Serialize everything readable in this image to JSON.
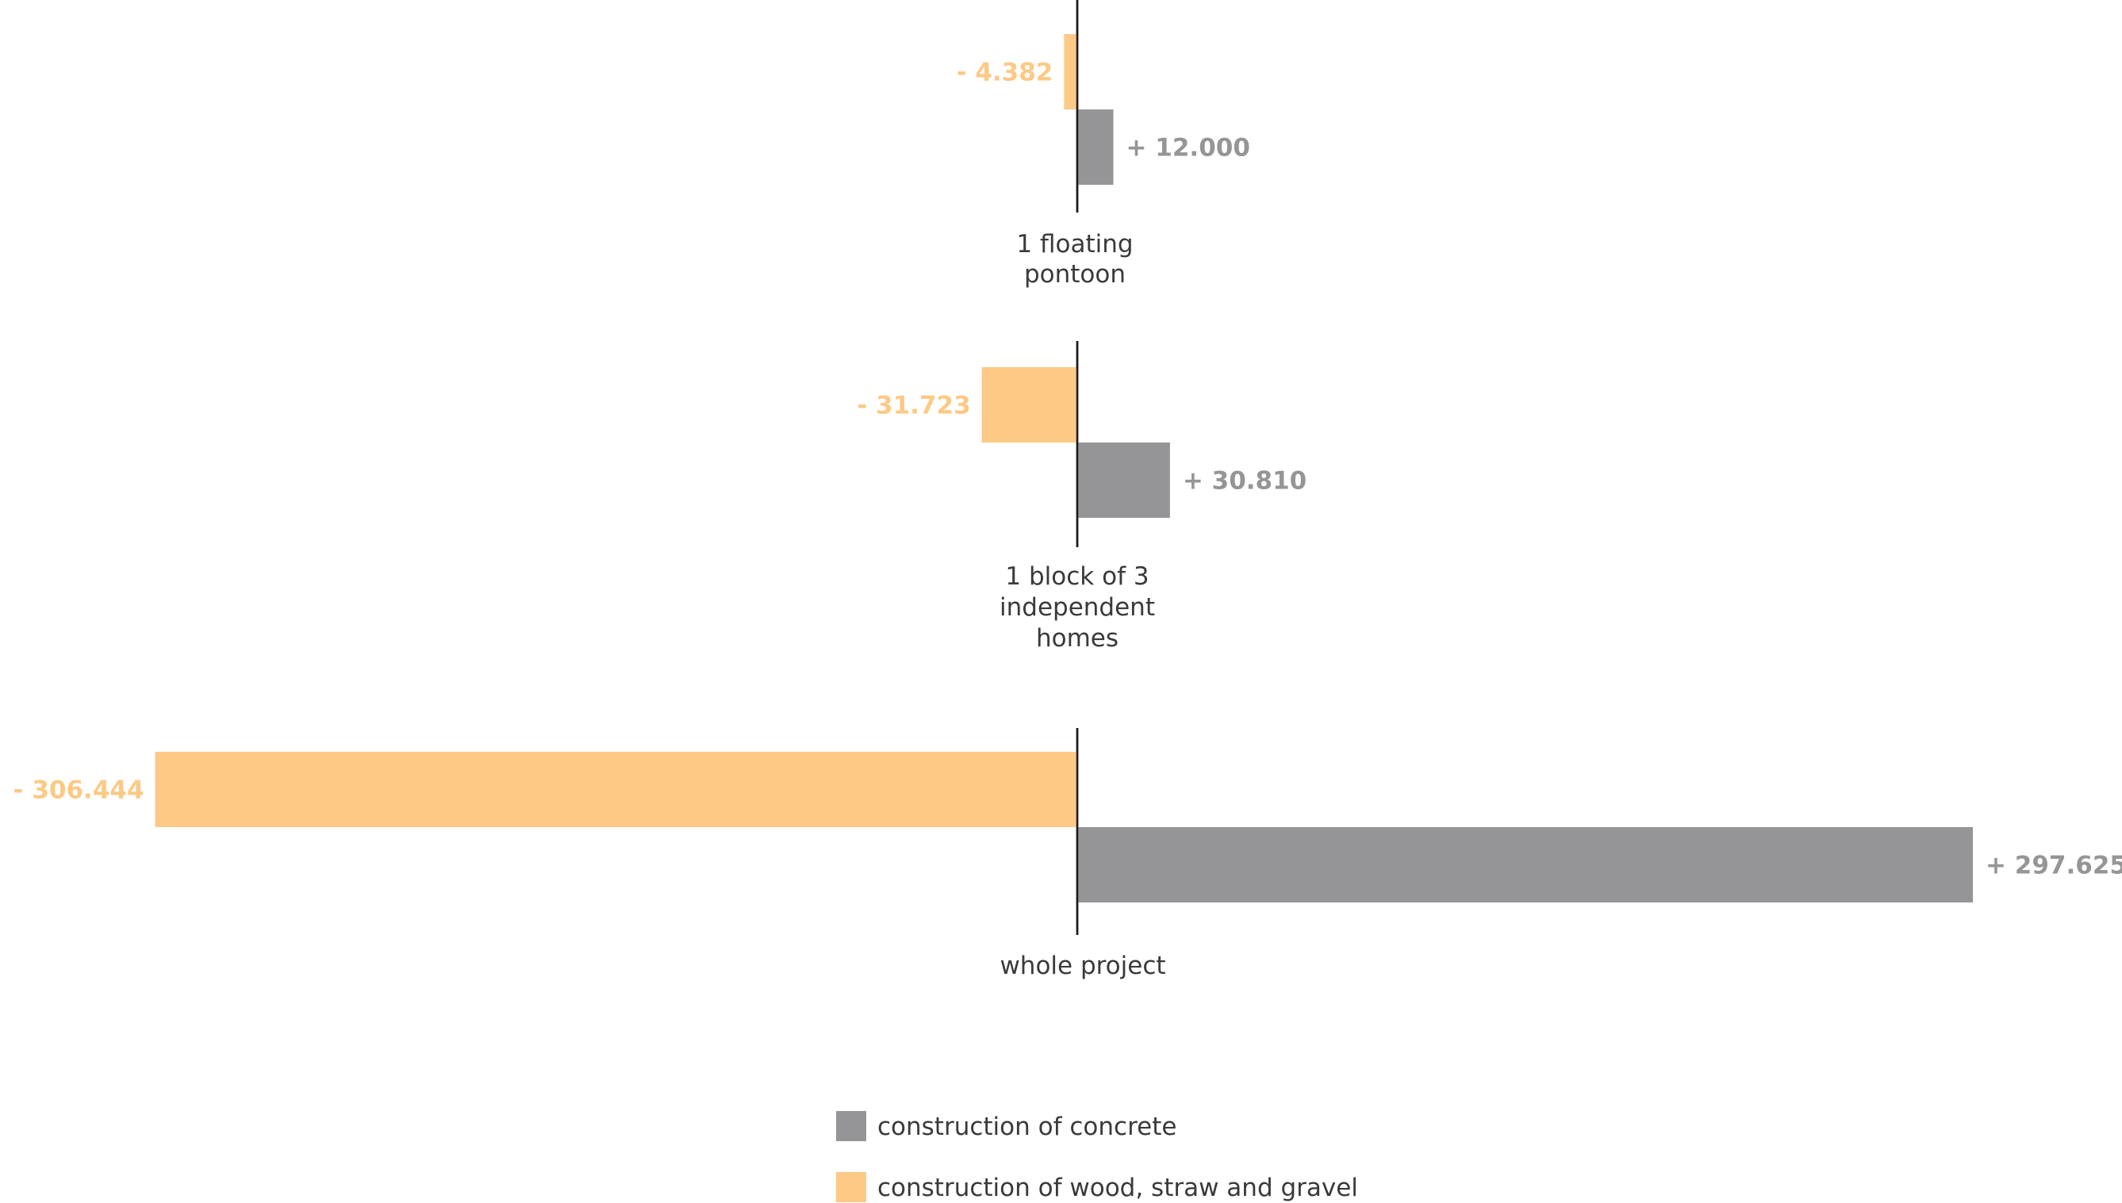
{
  "chart_data": {
    "type": "bar",
    "orientation": "horizontal-diverging",
    "categories": [
      [
        "1 floating",
        "pontoon"
      ],
      [
        "1 block of 3",
        "independent",
        "homes"
      ],
      [
        "whole project"
      ]
    ],
    "series": [
      {
        "name": "construction of wood, straw and gravel",
        "color": "#fcc986",
        "values": [
          -4382,
          -31723,
          -306444
        ],
        "labels": [
          "- 4.382",
          "- 31.723",
          "- 306.444"
        ]
      },
      {
        "name": "construction of concrete",
        "color": "#959597",
        "values": [
          12000,
          30810,
          297625
        ],
        "labels": [
          "+ 12.000",
          "+ 30.810",
          "+ 297.625"
        ]
      }
    ],
    "legend": {
      "position": "bottom-center",
      "order": [
        "construction of concrete",
        "construction of wood, straw and gravel"
      ]
    },
    "title": "",
    "xlabel": "",
    "ylabel": "",
    "grid": false
  }
}
